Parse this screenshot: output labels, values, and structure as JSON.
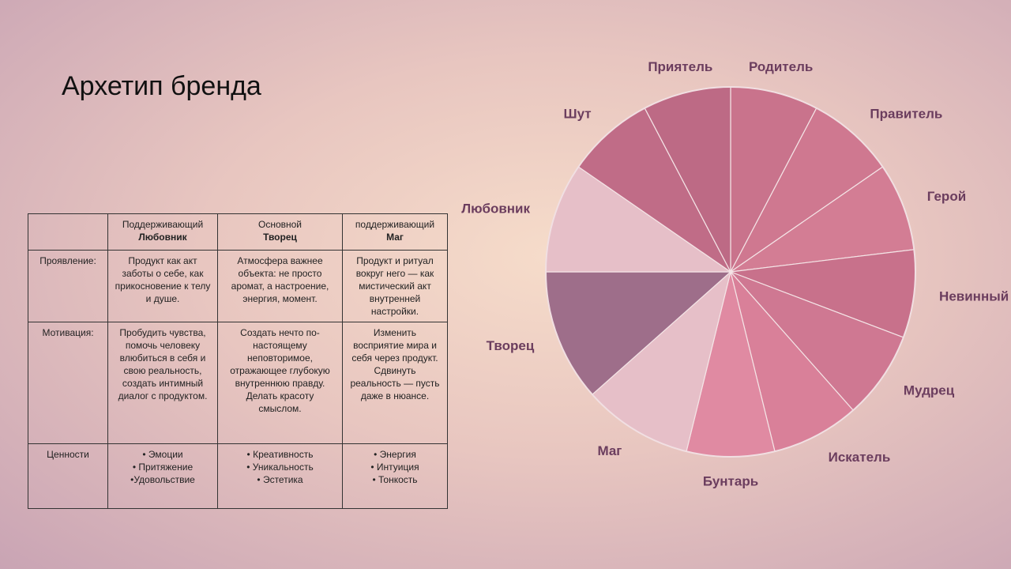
{
  "header": {
    "title": "Архетип бренда"
  },
  "table": {
    "columns": [
      {
        "role": "Поддерживающий",
        "name": "Любовник"
      },
      {
        "role": "Основной",
        "name": "Творец"
      },
      {
        "role": "поддерживающий",
        "name": "Маг"
      }
    ],
    "rows": [
      {
        "label": "Проявление:",
        "cells": [
          [
            "Продукт как акт заботы о себе, как прикосновение к телу и душе."
          ],
          [
            "Атмосфера важнее объекта: не просто аромат, а настроение, энергия, момент."
          ],
          [
            "Продукт и ритуал вокруг него — как мистический акт внутренней настройки."
          ]
        ]
      },
      {
        "label": "Мотивация:",
        "cells": [
          [
            "Пробудить чувства, помочь человеку влюбиться в себя и свою реальность, создать интимный диалог с продуктом."
          ],
          [
            "Создать нечто по-настоящему неповторимое, отражающее глубокую внутреннюю правду. Делать красоту смыслом."
          ],
          [
            "Изменить восприятие мира и себя через продукт. Сдвинуть реальность — пусть даже в нюансе."
          ]
        ]
      },
      {
        "label": "Ценности",
        "cells": [
          [
            "• Эмоции",
            "• Притяжение",
            "•Удовольствие"
          ],
          [
            "• Креативность",
            "• Уникальность",
            "• Эстетика"
          ],
          [
            "• Энергия",
            "• Интуиция",
            "• Тонкость"
          ]
        ]
      }
    ]
  },
  "chart_data": {
    "type": "pie",
    "categories": [
      "Родитель",
      "Правитель",
      "Герой",
      "Невинный",
      "Мудрец",
      "Искатель",
      "Бунтарь",
      "Маг",
      "Творец",
      "Любовник",
      "Шут",
      "Приятель"
    ],
    "values": [
      8,
      8,
      8,
      8,
      8,
      8,
      8,
      10,
      12,
      10,
      8,
      8
    ],
    "colors": [
      "#c9738c",
      "#cf7890",
      "#d37d94",
      "#c8718b",
      "#cf7892",
      "#d98099",
      "#e08aa2",
      "#e6bfc8",
      "#9e6e8a",
      "#e6bfc8",
      "#c06c87",
      "#bd6a85"
    ]
  }
}
